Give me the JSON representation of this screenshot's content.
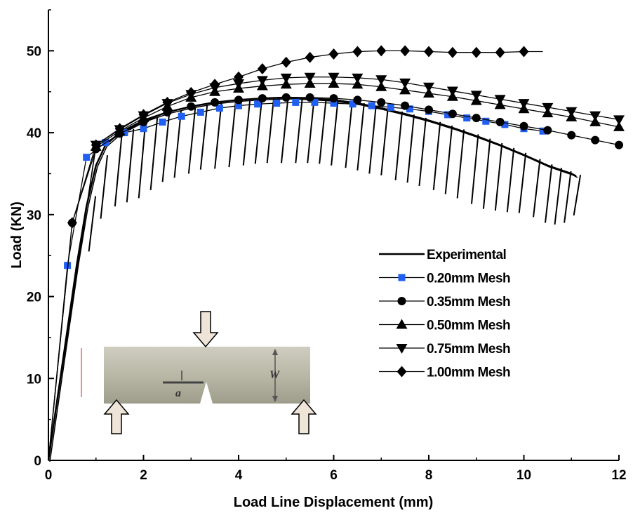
{
  "chart_data": {
    "type": "line",
    "xlabel": "Load Line Displacement (mm)",
    "ylabel": "Load (KN)",
    "xlim": [
      0,
      12
    ],
    "ylim": [
      0,
      55
    ],
    "xticks": [
      0,
      2,
      4,
      6,
      8,
      10,
      12
    ],
    "yticks": [
      0,
      10,
      20,
      30,
      40,
      50
    ],
    "x_tick_labels": [
      "0",
      "2",
      "4",
      "6",
      "8",
      "10",
      "12"
    ],
    "y_tick_labels": [
      "0",
      "10",
      "20",
      "30",
      "40",
      "50"
    ],
    "grid": false,
    "legend_position": "right-middle",
    "series": [
      {
        "name": "Experimental",
        "marker": "none",
        "color": "#000000",
        "envelope": [
          [
            0,
            0
          ],
          [
            0.3,
            12
          ],
          [
            0.6,
            24
          ],
          [
            0.8,
            31
          ],
          [
            1.0,
            36
          ],
          [
            1.2,
            38.5
          ],
          [
            1.5,
            40
          ],
          [
            2,
            41.5
          ],
          [
            2.5,
            42.5
          ],
          [
            3,
            43.2
          ],
          [
            3.5,
            43.7
          ],
          [
            4,
            44
          ],
          [
            4.5,
            44.2
          ],
          [
            5,
            44.3
          ],
          [
            5.5,
            44.2
          ],
          [
            6,
            44
          ],
          [
            6.5,
            43.6
          ],
          [
            7,
            43
          ],
          [
            7.5,
            42.3
          ],
          [
            8,
            41.5
          ],
          [
            8.5,
            40.6
          ],
          [
            9,
            39.6
          ],
          [
            9.5,
            38.5
          ],
          [
            10,
            37.3
          ],
          [
            10.5,
            36
          ],
          [
            11,
            35
          ],
          [
            11.1,
            34.7
          ]
        ],
        "unloading_min": [
          [
            0.85,
            25.5
          ],
          [
            1.1,
            29.5
          ],
          [
            1.4,
            31
          ],
          [
            1.65,
            31.5
          ],
          [
            1.9,
            32
          ],
          [
            2.15,
            33
          ],
          [
            2.4,
            34
          ],
          [
            2.65,
            34.5
          ],
          [
            2.95,
            35
          ],
          [
            3.2,
            35.5
          ],
          [
            3.5,
            35.6
          ],
          [
            3.8,
            35.8
          ],
          [
            4.1,
            36
          ],
          [
            4.35,
            36.2
          ],
          [
            4.6,
            36.3
          ],
          [
            4.9,
            36.3
          ],
          [
            5.2,
            36.3
          ],
          [
            5.45,
            36.3
          ],
          [
            5.7,
            36.2
          ],
          [
            5.95,
            36
          ],
          [
            6.25,
            35.7
          ],
          [
            6.5,
            35.4
          ],
          [
            6.75,
            35
          ],
          [
            7.0,
            34.8
          ],
          [
            7.3,
            34.2
          ],
          [
            7.55,
            33.9
          ],
          [
            7.8,
            33.5
          ],
          [
            8.1,
            33
          ],
          [
            8.35,
            32.5
          ],
          [
            8.6,
            32
          ],
          [
            8.9,
            31.3
          ],
          [
            9.15,
            30.7
          ],
          [
            9.4,
            30.5
          ],
          [
            9.65,
            30.3
          ],
          [
            9.9,
            30.2
          ],
          [
            10.2,
            29.7
          ],
          [
            10.45,
            29
          ],
          [
            10.65,
            28.8
          ],
          [
            10.85,
            29
          ],
          [
            11.05,
            29.9
          ]
        ]
      },
      {
        "name": "0.20mm Mesh",
        "marker": "square",
        "color": "#1f5ff2",
        "x": [
          0.4,
          0.8,
          1.2,
          1.6,
          2.0,
          2.4,
          2.8,
          3.2,
          3.6,
          4.0,
          4.4,
          4.8,
          5.2,
          5.6,
          6.0,
          6.4,
          6.8,
          7.2,
          7.6,
          8.0,
          8.4,
          8.8,
          9.2,
          9.6,
          10.0,
          10.4
        ],
        "y": [
          23.8,
          37,
          38.8,
          40,
          40.5,
          41.3,
          42,
          42.5,
          43,
          43.3,
          43.5,
          43.6,
          43.7,
          43.7,
          43.6,
          43.5,
          43.3,
          43.1,
          42.9,
          42.6,
          42.2,
          41.8,
          41.4,
          41,
          40.5,
          40.2
        ]
      },
      {
        "name": "0.35mm Mesh",
        "marker": "circle",
        "color": "#000000",
        "x": [
          0.5,
          1.0,
          1.5,
          2.0,
          2.5,
          3.0,
          3.5,
          4.0,
          4.5,
          5.0,
          5.5,
          6.0,
          6.5,
          7.0,
          7.5,
          8.0,
          8.5,
          9.0,
          9.5,
          10.0,
          10.5,
          11.0,
          11.5,
          12.0
        ],
        "y": [
          29,
          38,
          39.9,
          41.3,
          42.5,
          43.2,
          43.7,
          44,
          44.2,
          44.3,
          44.3,
          44.2,
          44,
          43.7,
          43.3,
          42.8,
          42.3,
          41.8,
          41.3,
          40.8,
          40.3,
          39.7,
          39.1,
          38.5
        ]
      },
      {
        "name": "0.50mm Mesh",
        "marker": "triangle-up",
        "color": "#000000",
        "x": [
          1.0,
          1.5,
          2.0,
          2.5,
          3.0,
          3.5,
          4.0,
          4.5,
          5.0,
          5.5,
          6.0,
          6.5,
          7.0,
          7.5,
          8.0,
          8.5,
          9.0,
          9.5,
          10.0,
          10.5,
          11.0,
          11.5,
          12.0
        ],
        "y": [
          38.3,
          40.2,
          41.8,
          43.2,
          44.3,
          45,
          45.4,
          45.7,
          45.9,
          46,
          46,
          45.9,
          45.6,
          45.2,
          44.8,
          44.4,
          43.9,
          43.4,
          42.9,
          42.4,
          41.9,
          41.3,
          40.7
        ]
      },
      {
        "name": "0.75mm Mesh",
        "marker": "triangle-down",
        "color": "#000000",
        "x": [
          1.0,
          1.5,
          2.0,
          2.5,
          3.0,
          3.5,
          4.0,
          4.5,
          5.0,
          5.5,
          6.0,
          6.5,
          7.0,
          7.5,
          8.0,
          8.5,
          9.0,
          9.5,
          10.0,
          10.5,
          11.0,
          11.5,
          12.0
        ],
        "y": [
          38.5,
          40.4,
          42.1,
          43.6,
          44.7,
          45.5,
          46,
          46.4,
          46.7,
          46.8,
          46.8,
          46.7,
          46.5,
          46.1,
          45.6,
          45.1,
          44.6,
          44.1,
          43.6,
          43.1,
          42.6,
          42.1,
          41.6
        ]
      },
      {
        "name": "1.00mm Mesh",
        "marker": "diamond",
        "color": "#000000",
        "x": [
          0.5,
          1.0,
          1.5,
          2.0,
          2.5,
          3.0,
          3.5,
          4.0,
          4.5,
          5.0,
          5.5,
          6.0,
          6.5,
          7.0,
          7.5,
          8.0,
          8.5,
          9.0,
          9.5,
          10.0
        ],
        "y": [
          29,
          38.5,
          40.5,
          42.2,
          43.7,
          44.9,
          45.9,
          46.8,
          47.8,
          48.6,
          49.2,
          49.6,
          49.9,
          50,
          50,
          49.9,
          49.8,
          49.8,
          49.8,
          49.9
        ],
        "line_end_x": 10.4
      }
    ],
    "inset": {
      "description_free": true,
      "labels": [
        "a",
        "W"
      ]
    }
  }
}
